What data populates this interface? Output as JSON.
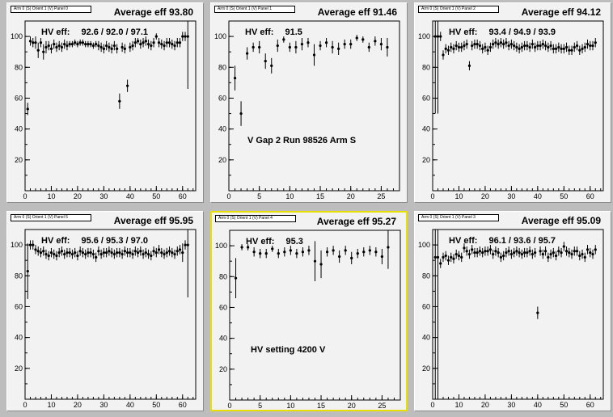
{
  "panels": [
    {
      "stat_label": "Arm 0 (S) Orient 1 (V) Panel 0",
      "title": "Average eff 93.80",
      "hv_label": "HV eff:",
      "hv_value": "92.6 / 92.0 / 97.1",
      "annotation": "",
      "selected": false
    },
    {
      "stat_label": "Arm 0 (S) Orient 1 (V) Panel 1",
      "title": "Average eff 91.46",
      "hv_label": "HV eff:",
      "hv_value": "91.5",
      "annotation": "V Gap 2 Run 98526 Arm S",
      "selected": false
    },
    {
      "stat_label": "Arm 0 (S) Orient 1 (V) Panel 2",
      "title": "Average eff 94.12",
      "hv_label": "HV eff:",
      "hv_value": "93.4 / 94.9 / 93.9",
      "annotation": "",
      "selected": false
    },
    {
      "stat_label": "Arm 0 (S) Orient 1 (V) Panel 5",
      "title": "Average eff 95.95",
      "hv_label": "HV eff:",
      "hv_value": "95.6 / 95.3 / 97.0",
      "annotation": "",
      "selected": false
    },
    {
      "stat_label": "Arm 0 (S) Orient 1 (V) Panel 4",
      "title": "Average eff 95.27",
      "hv_label": "HV eff:",
      "hv_value": "95.3",
      "annotation": "HV setting 4200 V",
      "selected": true
    },
    {
      "stat_label": "Arm 0 (S) Orient 1 (V) Panel 3",
      "title": "Average eff 95.09",
      "hv_label": "HV eff:",
      "hv_value": "96.1 / 93.6 / 95.7",
      "annotation": "",
      "selected": false
    }
  ],
  "chart_data": [
    {
      "type": "scatter",
      "title": "Average eff 93.80",
      "xlabel": "",
      "ylabel": "",
      "xlim": [
        0,
        65
      ],
      "ylim": [
        0,
        110
      ],
      "xticks": [
        "0",
        "10",
        "20",
        "30",
        "40",
        "50",
        "60"
      ],
      "yticks": [
        "20",
        "40",
        "60",
        "80",
        "100"
      ],
      "x": [
        1,
        2,
        3,
        4,
        5,
        6,
        7,
        8,
        9,
        10,
        11,
        12,
        13,
        14,
        15,
        16,
        17,
        18,
        19,
        20,
        21,
        22,
        23,
        24,
        25,
        26,
        27,
        28,
        29,
        30,
        31,
        32,
        33,
        34,
        35,
        36,
        37,
        38,
        39,
        40,
        41,
        42,
        43,
        44,
        45,
        46,
        47,
        48,
        49,
        50,
        51,
        52,
        53,
        54,
        55,
        56,
        57,
        58,
        59,
        60,
        61,
        62
      ],
      "y": [
        53,
        97,
        96,
        96,
        91,
        96,
        90,
        93,
        94,
        92,
        95,
        93,
        94,
        93,
        95,
        94,
        95,
        95,
        96,
        95,
        96,
        96,
        95,
        95,
        95,
        94,
        95,
        94,
        93,
        92,
        94,
        93,
        92,
        94,
        92,
        58,
        93,
        92,
        68,
        93,
        94,
        96,
        97,
        95,
        96,
        97,
        95,
        94,
        96,
        100,
        96,
        95,
        94,
        96,
        96,
        95,
        94,
        96,
        96,
        100,
        100,
        100
      ],
      "yerr": [
        4,
        3,
        3,
        4,
        5,
        3,
        5,
        4,
        3,
        3,
        3,
        3,
        3,
        3,
        3,
        3,
        2,
        2,
        2,
        2,
        2,
        2,
        2,
        2,
        2,
        2,
        2,
        3,
        3,
        3,
        3,
        3,
        3,
        3,
        3,
        5,
        3,
        3,
        4,
        3,
        3,
        3,
        2,
        3,
        3,
        3,
        3,
        3,
        3,
        2,
        3,
        3,
        3,
        3,
        3,
        3,
        3,
        3,
        3,
        3,
        3,
        34
      ]
    },
    {
      "type": "scatter",
      "title": "Average eff 91.46",
      "xlabel": "",
      "ylabel": "",
      "xlim": [
        0,
        28
      ],
      "ylim": [
        0,
        110
      ],
      "xticks": [
        "0",
        "5",
        "10",
        "15",
        "20",
        "25"
      ],
      "yticks": [
        "20",
        "40",
        "60",
        "80",
        "100"
      ],
      "x": [
        1,
        2,
        3,
        4,
        5,
        6,
        7,
        8,
        9,
        10,
        11,
        12,
        13,
        14,
        15,
        16,
        17,
        18,
        19,
        20,
        21,
        22,
        23,
        24,
        25,
        26
      ],
      "y": [
        73,
        50,
        89,
        93,
        93,
        84,
        81,
        94,
        98,
        93,
        93,
        95,
        96,
        88,
        94,
        96,
        93,
        92,
        95,
        95,
        99,
        98,
        93,
        97,
        95,
        93
      ],
      "yerr": [
        8,
        8,
        4,
        3,
        4,
        5,
        5,
        4,
        2,
        3,
        4,
        4,
        3,
        7,
        3,
        3,
        4,
        4,
        3,
        3,
        2,
        2,
        3,
        3,
        4,
        6
      ]
    },
    {
      "type": "scatter",
      "title": "Average eff 94.12",
      "xlabel": "",
      "ylabel": "",
      "xlim": [
        0,
        65
      ],
      "ylim": [
        0,
        110
      ],
      "xticks": [
        "0",
        "10",
        "20",
        "30",
        "40",
        "50",
        "60"
      ],
      "yticks": [
        "20",
        "40",
        "60",
        "80",
        "100"
      ],
      "x": [
        1,
        2,
        3,
        4,
        5,
        6,
        7,
        8,
        9,
        10,
        11,
        12,
        13,
        14,
        15,
        16,
        17,
        18,
        19,
        20,
        21,
        22,
        23,
        24,
        25,
        26,
        27,
        28,
        29,
        30,
        31,
        32,
        33,
        34,
        35,
        36,
        37,
        38,
        39,
        40,
        41,
        42,
        43,
        44,
        45,
        46,
        47,
        48,
        49,
        50,
        51,
        52,
        53,
        54,
        55,
        56,
        57,
        58,
        59,
        60,
        61,
        62
      ],
      "y": [
        100,
        100,
        100,
        88,
        92,
        91,
        93,
        92,
        94,
        93,
        93,
        94,
        95,
        81,
        94,
        95,
        95,
        94,
        92,
        93,
        91,
        93,
        95,
        96,
        95,
        96,
        95,
        96,
        94,
        95,
        94,
        93,
        92,
        93,
        94,
        94,
        93,
        95,
        93,
        94,
        94,
        95,
        94,
        93,
        94,
        92,
        92,
        93,
        92,
        92,
        93,
        91,
        91,
        93,
        94,
        91,
        92,
        93,
        95,
        94,
        94,
        96
      ],
      "yerr": [
        50,
        50,
        3,
        3,
        3,
        3,
        3,
        3,
        3,
        3,
        3,
        3,
        3,
        3,
        3,
        3,
        3,
        3,
        3,
        3,
        3,
        3,
        3,
        3,
        3,
        3,
        3,
        3,
        3,
        3,
        3,
        3,
        3,
        3,
        3,
        3,
        3,
        3,
        3,
        3,
        3,
        3,
        3,
        3,
        3,
        3,
        3,
        3,
        3,
        3,
        3,
        3,
        3,
        3,
        3,
        3,
        3,
        3,
        3,
        3,
        3,
        3
      ]
    },
    {
      "type": "scatter",
      "title": "Average eff 95.95",
      "xlabel": "",
      "ylabel": "",
      "xlim": [
        0,
        65
      ],
      "ylim": [
        0,
        110
      ],
      "xticks": [
        "0",
        "10",
        "20",
        "30",
        "40",
        "50",
        "60"
      ],
      "yticks": [
        "20",
        "40",
        "60",
        "80",
        "100"
      ],
      "x": [
        1,
        2,
        3,
        4,
        5,
        6,
        7,
        8,
        9,
        10,
        11,
        12,
        13,
        14,
        15,
        16,
        17,
        18,
        19,
        20,
        21,
        22,
        23,
        24,
        25,
        26,
        27,
        28,
        29,
        30,
        31,
        32,
        33,
        34,
        35,
        36,
        37,
        38,
        39,
        40,
        41,
        42,
        43,
        44,
        45,
        46,
        47,
        48,
        49,
        50,
        51,
        52,
        53,
        54,
        55,
        56,
        57,
        58,
        59,
        60,
        61,
        62
      ],
      "y": [
        83,
        100,
        100,
        97,
        96,
        95,
        96,
        94,
        93,
        95,
        94,
        93,
        95,
        96,
        94,
        95,
        95,
        94,
        95,
        93,
        96,
        95,
        94,
        95,
        95,
        94,
        92,
        96,
        94,
        95,
        95,
        96,
        95,
        94,
        95,
        95,
        94,
        96,
        95,
        95,
        94,
        96,
        95,
        96,
        94,
        95,
        94,
        93,
        96,
        95,
        97,
        95,
        94,
        95,
        96,
        95,
        94,
        96,
        97,
        95,
        100,
        100
      ],
      "yerr": [
        18,
        3,
        3,
        3,
        3,
        3,
        3,
        3,
        3,
        3,
        3,
        3,
        3,
        3,
        3,
        3,
        3,
        3,
        3,
        3,
        3,
        3,
        3,
        3,
        3,
        3,
        3,
        3,
        3,
        3,
        3,
        3,
        3,
        3,
        3,
        3,
        3,
        3,
        3,
        3,
        3,
        3,
        3,
        3,
        3,
        3,
        3,
        3,
        3,
        3,
        3,
        3,
        3,
        3,
        3,
        3,
        3,
        3,
        3,
        6,
        3,
        34
      ]
    },
    {
      "type": "scatter",
      "title": "Average eff 95.27",
      "xlabel": "",
      "ylabel": "",
      "xlim": [
        0,
        28
      ],
      "ylim": [
        0,
        110
      ],
      "xticks": [
        "0",
        "5",
        "10",
        "15",
        "20",
        "25"
      ],
      "yticks": [
        "20",
        "40",
        "60",
        "80",
        "100"
      ],
      "x": [
        1,
        2,
        3,
        4,
        5,
        6,
        7,
        8,
        9,
        10,
        11,
        12,
        13,
        14,
        15,
        16,
        17,
        18,
        19,
        20,
        21,
        22,
        23,
        24,
        25,
        26
      ],
      "y": [
        79,
        99,
        99,
        96,
        95,
        95,
        98,
        95,
        96,
        97,
        95,
        96,
        97,
        90,
        88,
        96,
        97,
        93,
        97,
        92,
        95,
        96,
        97,
        96,
        93,
        99
      ],
      "yerr": [
        13,
        2,
        2,
        3,
        3,
        3,
        2,
        3,
        3,
        3,
        3,
        3,
        3,
        13,
        9,
        3,
        3,
        4,
        3,
        4,
        3,
        3,
        3,
        3,
        5,
        14
      ]
    },
    {
      "type": "scatter",
      "title": "Average eff 95.09",
      "xlabel": "",
      "ylabel": "",
      "xlim": [
        0,
        65
      ],
      "ylim": [
        0,
        110
      ],
      "xticks": [
        "0",
        "10",
        "20",
        "30",
        "40",
        "50",
        "60"
      ],
      "yticks": [
        "20",
        "40",
        "60",
        "80",
        "100"
      ],
      "x": [
        1,
        2,
        3,
        4,
        5,
        6,
        7,
        8,
        9,
        10,
        11,
        12,
        13,
        14,
        15,
        16,
        17,
        18,
        19,
        20,
        21,
        22,
        23,
        24,
        25,
        26,
        27,
        28,
        29,
        30,
        31,
        32,
        33,
        34,
        35,
        36,
        37,
        38,
        39,
        40,
        41,
        42,
        43,
        44,
        45,
        46,
        47,
        48,
        49,
        50,
        51,
        52,
        53,
        54,
        55,
        56,
        57,
        58,
        59,
        60,
        61,
        62
      ],
      "y": [
        92,
        92,
        88,
        92,
        93,
        90,
        92,
        91,
        94,
        93,
        92,
        98,
        96,
        94,
        97,
        95,
        95,
        96,
        95,
        96,
        96,
        97,
        94,
        96,
        95,
        92,
        93,
        95,
        96,
        94,
        95,
        96,
        95,
        94,
        95,
        95,
        96,
        94,
        95,
        56,
        96,
        94,
        96,
        92,
        94,
        95,
        93,
        96,
        95,
        99,
        96,
        95,
        94,
        96,
        96,
        93,
        94,
        92,
        97,
        95,
        94,
        97
      ],
      "yerr": [
        92,
        92,
        3,
        3,
        3,
        3,
        3,
        3,
        3,
        3,
        3,
        3,
        3,
        3,
        3,
        3,
        3,
        3,
        3,
        3,
        3,
        3,
        3,
        3,
        3,
        3,
        3,
        3,
        3,
        3,
        3,
        3,
        3,
        3,
        3,
        3,
        3,
        3,
        3,
        4,
        3,
        3,
        3,
        3,
        3,
        3,
        3,
        3,
        3,
        3,
        3,
        3,
        3,
        3,
        3,
        3,
        3,
        3,
        3,
        3,
        3,
        3
      ]
    }
  ]
}
